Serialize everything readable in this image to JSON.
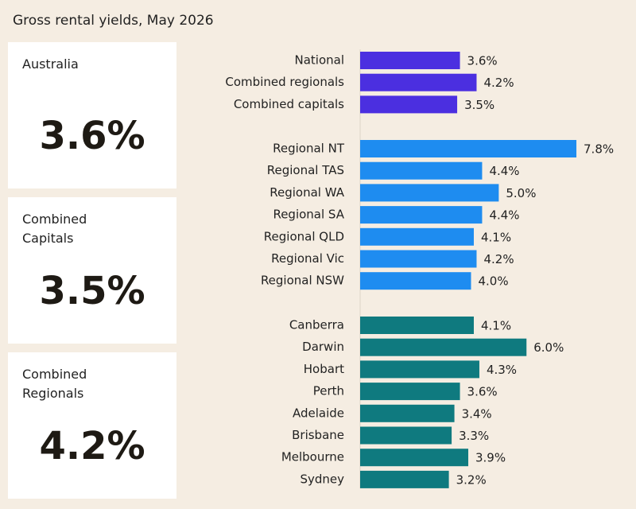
{
  "title": "Gross rental yields, May 2026",
  "cards": [
    {
      "title": "Australia",
      "value": "3.6%"
    },
    {
      "title": "Combined Capitals",
      "value": "3.5%"
    },
    {
      "title": "Combined Regionals",
      "value": "4.2%"
    }
  ],
  "chart_data": [
    {
      "type": "bar",
      "orientation": "horizontal",
      "color": "#4b2fe0",
      "xlim": [
        0,
        8
      ],
      "categories": [
        "National",
        "Combined regionals",
        "Combined capitals"
      ],
      "values": [
        3.6,
        4.2,
        3.5
      ],
      "value_labels": [
        "3.6%",
        "4.2%",
        "3.5%"
      ]
    },
    {
      "type": "bar",
      "orientation": "horizontal",
      "color": "#1e8cf0",
      "xlim": [
        0,
        8
      ],
      "categories": [
        "Regional NT",
        "Regional TAS",
        "Regional WA",
        "Regional SA",
        "Regional QLD",
        "Regional Vic",
        "Regional NSW"
      ],
      "values": [
        7.8,
        4.4,
        5.0,
        4.4,
        4.1,
        4.2,
        4.0
      ],
      "value_labels": [
        "7.8%",
        "4.4%",
        "5.0%",
        "4.4%",
        "4.1%",
        "4.2%",
        "4.0%"
      ]
    },
    {
      "type": "bar",
      "orientation": "horizontal",
      "color": "#0f7a7f",
      "xlim": [
        0,
        8
      ],
      "categories": [
        "Canberra",
        "Darwin",
        "Hobart",
        "Perth",
        "Adelaide",
        "Brisbane",
        "Melbourne",
        "Sydney"
      ],
      "values": [
        4.1,
        6.0,
        4.3,
        3.6,
        3.4,
        3.3,
        3.9,
        3.2
      ],
      "value_labels": [
        "4.1%",
        "6.0%",
        "4.3%",
        "3.6%",
        "3.4%",
        "3.3%",
        "3.9%",
        "3.2%"
      ]
    }
  ]
}
